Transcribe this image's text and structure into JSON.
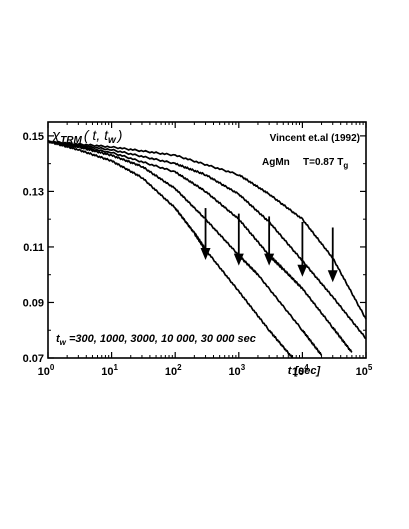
{
  "chart_data": {
    "type": "line",
    "title_annotation": "Vincent et.al (1992)",
    "material": "AgMn",
    "temperature": "T=0.87 T",
    "temperature_sub": "g",
    "ylabel_main": "χ",
    "ylabel_sub": "TRM",
    "ylabel_args": "( t, t",
    "ylabel_args_sub": "w",
    "ylabel_close": ")",
    "xlabel": "t [sec]",
    "tw_label": "t",
    "tw_sub": "w",
    "tw_values_text": " =300, 1000, 3000, 10 000, 30 000  sec",
    "x_scale": "log",
    "xlim": [
      1,
      100000
    ],
    "ylim": [
      0.07,
      0.155
    ],
    "y_ticks": [
      "0.15",
      "0.13",
      "0.11",
      "0.09",
      "0.07"
    ],
    "x_ticks": [
      {
        "base": "10",
        "exp": "0"
      },
      {
        "base": "10",
        "exp": "1"
      },
      {
        "base": "10",
        "exp": "2"
      },
      {
        "base": "10",
        "exp": "3"
      },
      {
        "base": "10",
        "exp": "4"
      },
      {
        "base": "10",
        "exp": "5"
      }
    ],
    "series": [
      {
        "tw": 300,
        "x": [
          1,
          3,
          10,
          30,
          100,
          200,
          300,
          1000,
          3000,
          7000
        ],
        "y": [
          0.148,
          0.145,
          0.141,
          0.135,
          0.124,
          0.115,
          0.109,
          0.094,
          0.08,
          0.07
        ]
      },
      {
        "tw": 1000,
        "x": [
          1,
          3,
          10,
          30,
          100,
          300,
          1000,
          2000,
          10000,
          20000
        ],
        "y": [
          0.148,
          0.146,
          0.143,
          0.139,
          0.131,
          0.12,
          0.107,
          0.1,
          0.08,
          0.071
        ]
      },
      {
        "tw": 3000,
        "x": [
          1,
          10,
          100,
          300,
          1000,
          3000,
          5000,
          10000,
          30000,
          60000
        ],
        "y": [
          0.148,
          0.144,
          0.137,
          0.13,
          0.12,
          0.107,
          0.102,
          0.095,
          0.081,
          0.072
        ]
      },
      {
        "tw": 10000,
        "x": [
          1,
          10,
          100,
          300,
          1000,
          3000,
          10000,
          30000,
          100000
        ],
        "y": [
          0.148,
          0.145,
          0.14,
          0.136,
          0.129,
          0.119,
          0.105,
          0.092,
          0.077
        ]
      },
      {
        "tw": 30000,
        "x": [
          1,
          10,
          100,
          1000,
          3000,
          10000,
          30000,
          100000
        ],
        "y": [
          0.148,
          0.146,
          0.143,
          0.136,
          0.129,
          0.12,
          0.106,
          0.084
        ]
      }
    ],
    "arrows": [
      {
        "x": 300,
        "y_from": 0.124,
        "y_to": 0.106
      },
      {
        "x": 1000,
        "y_from": 0.122,
        "y_to": 0.104
      },
      {
        "x": 3000,
        "y_from": 0.121,
        "y_to": 0.104
      },
      {
        "x": 10000,
        "y_from": 0.119,
        "y_to": 0.1
      },
      {
        "x": 30000,
        "y_from": 0.117,
        "y_to": 0.098
      }
    ]
  }
}
